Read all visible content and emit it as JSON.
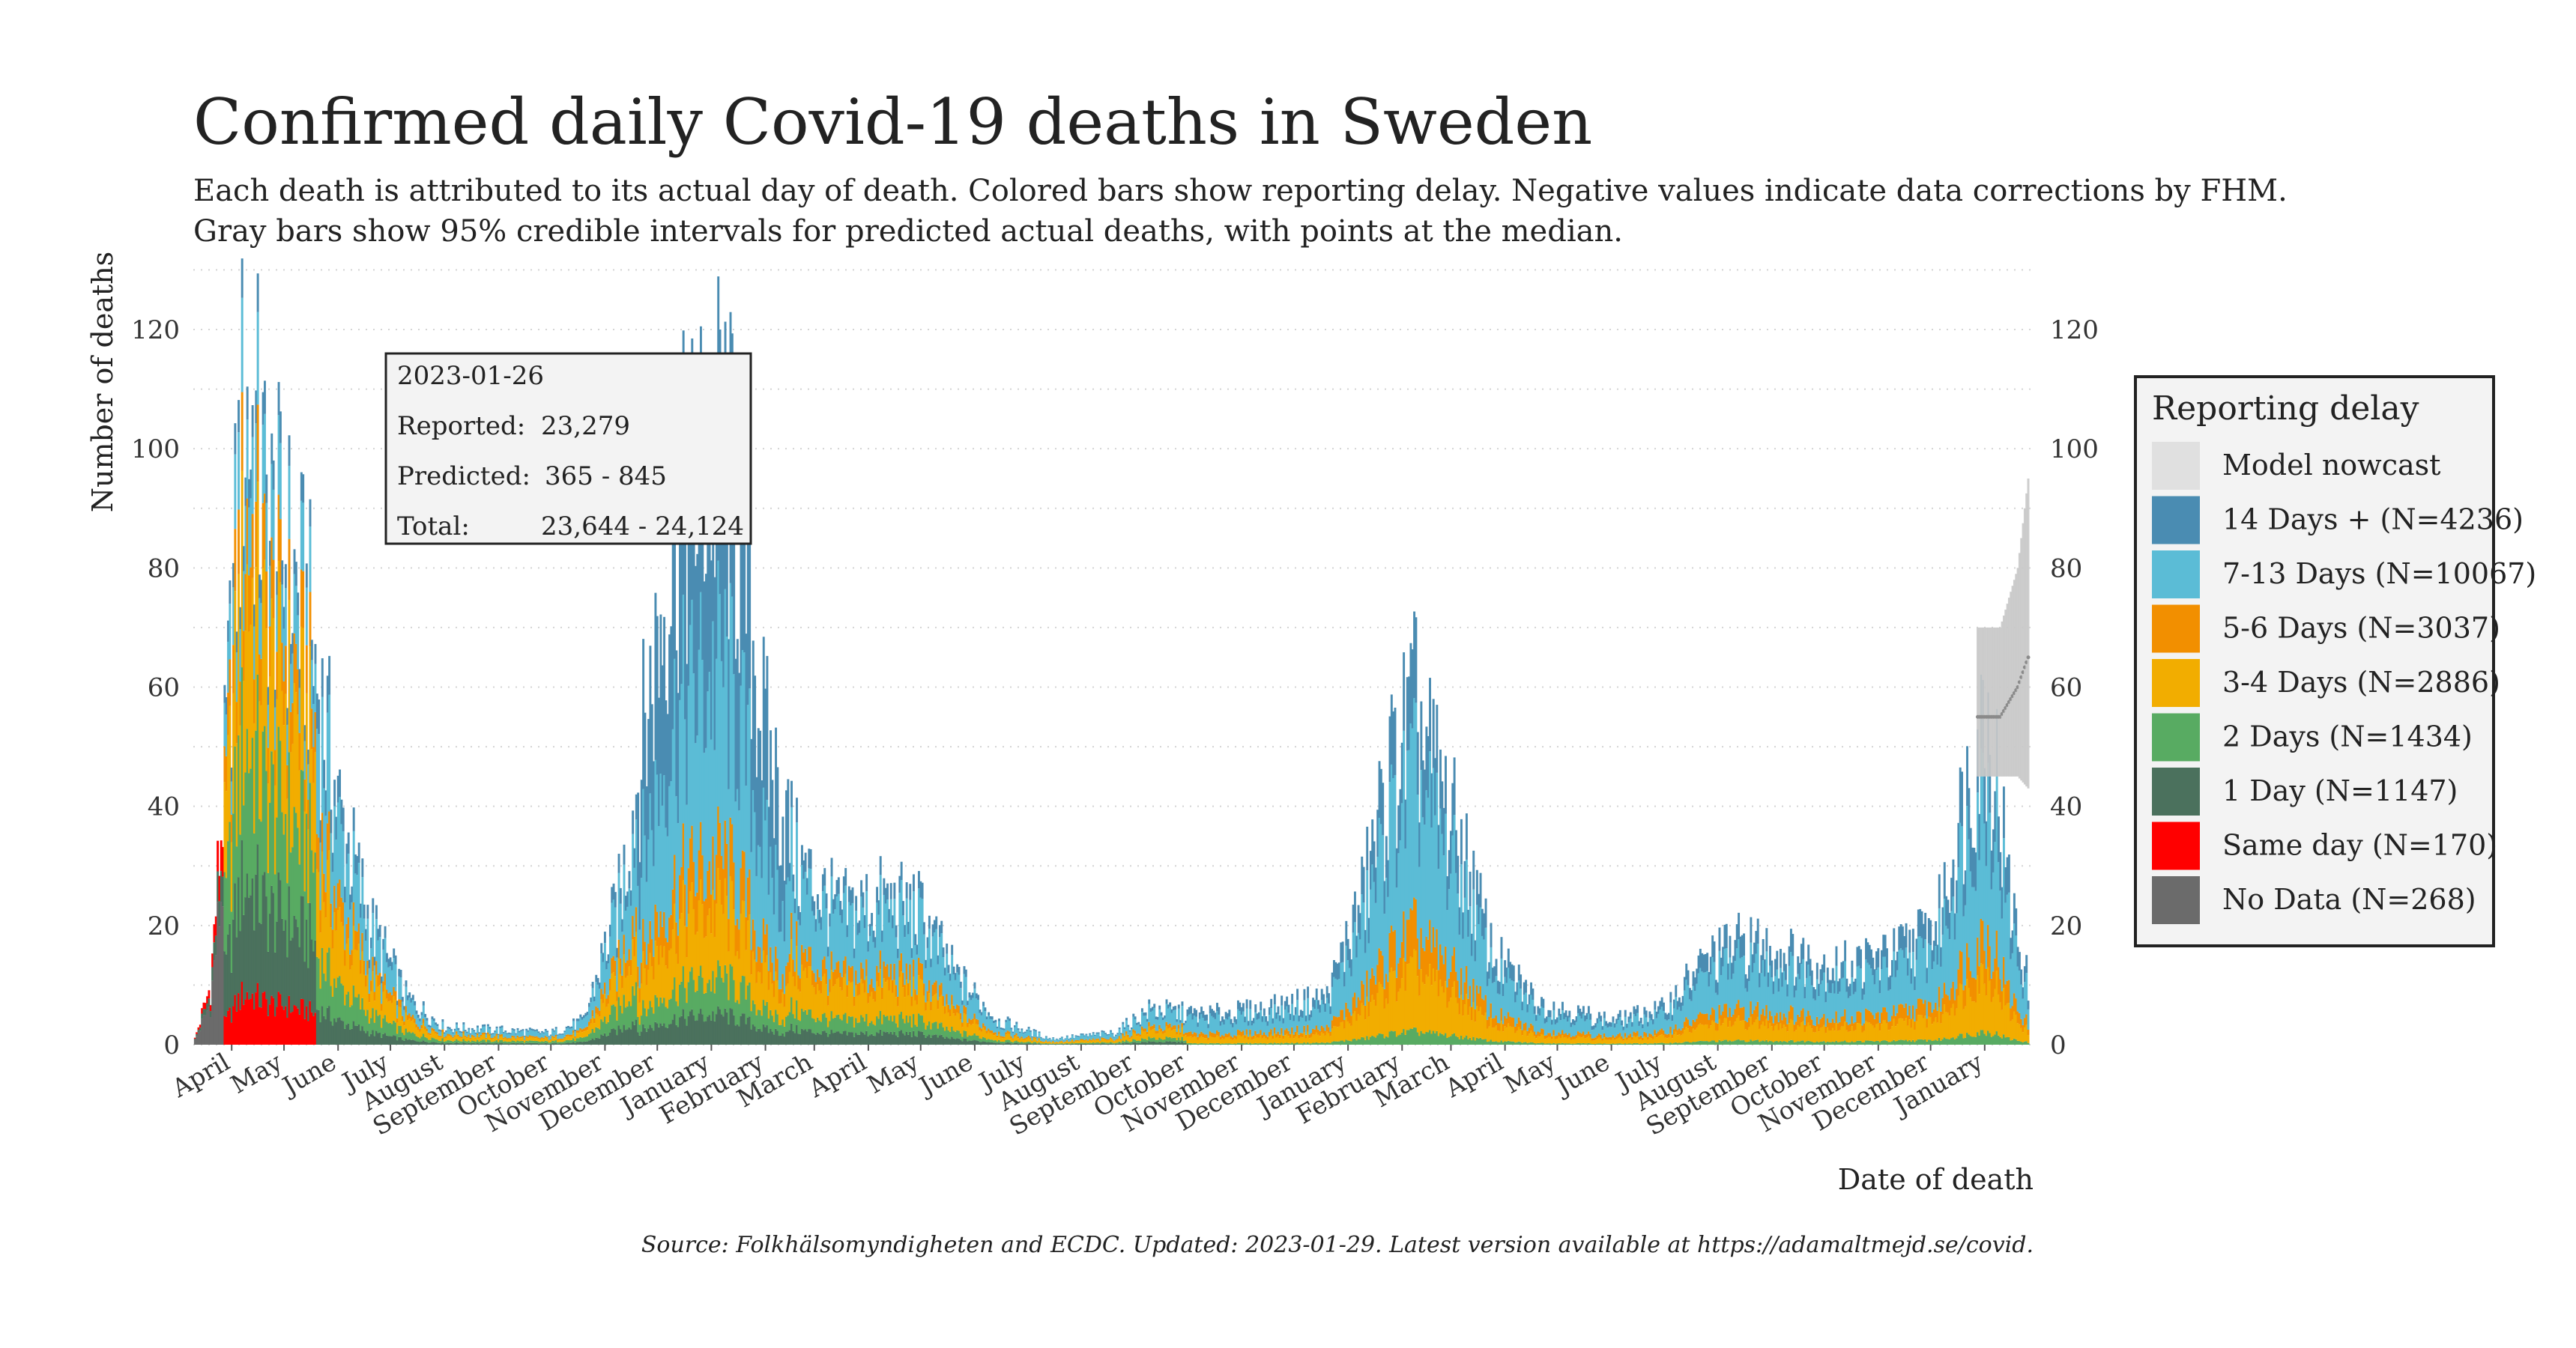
{
  "chart_data": {
    "type": "bar",
    "stacked": true,
    "title": "Confirmed daily Covid-19 deaths in Sweden",
    "subtitle_line1": "Each death is attributed to its actual day of death. Colored bars show reporting delay. Negative values indicate data corrections by FHM.",
    "subtitle_line2": "Gray bars show 95% credible intervals for predicted actual deaths, with points at the median.",
    "xlabel": "Date of death",
    "ylabel": "Number of deaths",
    "caption": "Source: Folkhälsomyndigheten and ECDC. Updated: 2023-01-29. Latest version available at https://adamaltmejd.se/covid.",
    "x_range": [
      "2020-03-10",
      "2023-01-29"
    ],
    "y_range": [
      0,
      120
    ],
    "y_ticks": [
      0,
      20,
      40,
      60,
      80,
      100,
      120
    ],
    "y_tick_labels": [
      "0",
      "20",
      "40",
      "60",
      "80",
      "100",
      "120"
    ],
    "grid": "horizontal dotted",
    "legend_position": "right",
    "month_ticks": [
      {
        "date": "2020-04-01",
        "label": "April"
      },
      {
        "date": "2020-05-01",
        "label": "May"
      },
      {
        "date": "2020-06-01",
        "label": "June"
      },
      {
        "date": "2020-07-01",
        "label": "July"
      },
      {
        "date": "2020-08-01",
        "label": "August"
      },
      {
        "date": "2020-09-01",
        "label": "September"
      },
      {
        "date": "2020-10-01",
        "label": "October"
      },
      {
        "date": "2020-11-01",
        "label": "November"
      },
      {
        "date": "2020-12-01",
        "label": "December"
      },
      {
        "date": "2021-01-01",
        "label": "January"
      },
      {
        "date": "2021-02-01",
        "label": "February"
      },
      {
        "date": "2021-03-01",
        "label": "March"
      },
      {
        "date": "2021-04-01",
        "label": "April"
      },
      {
        "date": "2021-05-01",
        "label": "May"
      },
      {
        "date": "2021-06-01",
        "label": "June"
      },
      {
        "date": "2021-07-01",
        "label": "July"
      },
      {
        "date": "2021-08-01",
        "label": "August"
      },
      {
        "date": "2021-09-01",
        "label": "September"
      },
      {
        "date": "2021-10-01",
        "label": "October"
      },
      {
        "date": "2021-11-01",
        "label": "November"
      },
      {
        "date": "2021-12-01",
        "label": "December"
      },
      {
        "date": "2022-01-01",
        "label": "January"
      },
      {
        "date": "2022-02-01",
        "label": "February"
      },
      {
        "date": "2022-03-01",
        "label": "March"
      },
      {
        "date": "2022-04-01",
        "label": "April"
      },
      {
        "date": "2022-05-01",
        "label": "May"
      },
      {
        "date": "2022-06-01",
        "label": "June"
      },
      {
        "date": "2022-07-01",
        "label": "July"
      },
      {
        "date": "2022-08-01",
        "label": "August"
      },
      {
        "date": "2022-09-01",
        "label": "September"
      },
      {
        "date": "2022-10-01",
        "label": "October"
      },
      {
        "date": "2022-11-01",
        "label": "November"
      },
      {
        "date": "2022-12-01",
        "label": "December"
      },
      {
        "date": "2023-01-01",
        "label": "January"
      }
    ],
    "series": [
      {
        "name": "Model nowcast",
        "color": "#e0e0e0",
        "legend_label": "Model nowcast"
      },
      {
        "name": "14 Days +",
        "color": "#4a8cb2",
        "legend_label": "14 Days + (N=4236)"
      },
      {
        "name": "7-13 Days",
        "color": "#5bbcd6",
        "legend_label": "7-13 Days (N=10067)"
      },
      {
        "name": "5-6 Days",
        "color": "#f28f00",
        "legend_label": "5-6 Days (N=3037)"
      },
      {
        "name": "3-4 Days",
        "color": "#f2ad00",
        "legend_label": "3-4 Days (N=2886)"
      },
      {
        "name": "2 Days",
        "color": "#58ab62",
        "legend_label": "2 Days (N=1434)"
      },
      {
        "name": "1 Day",
        "color": "#4b715d",
        "legend_label": "1 Day (N=1147)"
      },
      {
        "name": "Same day",
        "color": "#ff0000",
        "legend_label": "Same day (N=170)"
      },
      {
        "name": "No Data",
        "color": "#6b6b6b",
        "legend_label": "No Data (N=268)"
      }
    ],
    "daily_total_envelope": [
      {
        "date": "2020-03-10",
        "value": 0
      },
      {
        "date": "2020-03-20",
        "value": 10
      },
      {
        "date": "2020-03-28",
        "value": 45
      },
      {
        "date": "2020-04-03",
        "value": 80
      },
      {
        "date": "2020-04-08",
        "value": 108
      },
      {
        "date": "2020-04-15",
        "value": 100
      },
      {
        "date": "2020-04-22",
        "value": 85
      },
      {
        "date": "2020-05-01",
        "value": 82
      },
      {
        "date": "2020-05-15",
        "value": 70
      },
      {
        "date": "2020-06-01",
        "value": 40
      },
      {
        "date": "2020-06-20",
        "value": 20
      },
      {
        "date": "2020-07-10",
        "value": 8
      },
      {
        "date": "2020-08-01",
        "value": 3
      },
      {
        "date": "2020-10-01",
        "value": 2
      },
      {
        "date": "2020-10-20",
        "value": 4
      },
      {
        "date": "2020-11-10",
        "value": 25
      },
      {
        "date": "2020-11-25",
        "value": 55
      },
      {
        "date": "2020-12-10",
        "value": 85
      },
      {
        "date": "2020-12-25",
        "value": 95
      },
      {
        "date": "2021-01-08",
        "value": 100
      },
      {
        "date": "2021-01-20",
        "value": 80
      },
      {
        "date": "2021-02-01",
        "value": 50
      },
      {
        "date": "2021-02-20",
        "value": 30
      },
      {
        "date": "2021-03-15",
        "value": 22
      },
      {
        "date": "2021-04-10",
        "value": 24
      },
      {
        "date": "2021-05-01",
        "value": 22
      },
      {
        "date": "2021-05-20",
        "value": 12
      },
      {
        "date": "2021-06-15",
        "value": 4
      },
      {
        "date": "2021-07-15",
        "value": 1
      },
      {
        "date": "2021-08-20",
        "value": 2
      },
      {
        "date": "2021-09-10",
        "value": 6
      },
      {
        "date": "2021-10-10",
        "value": 5
      },
      {
        "date": "2021-11-15",
        "value": 6
      },
      {
        "date": "2021-12-20",
        "value": 8
      },
      {
        "date": "2022-01-10",
        "value": 25
      },
      {
        "date": "2022-01-25",
        "value": 45
      },
      {
        "date": "2022-02-08",
        "value": 55
      },
      {
        "date": "2022-02-20",
        "value": 45
      },
      {
        "date": "2022-03-10",
        "value": 30
      },
      {
        "date": "2022-03-25",
        "value": 15
      },
      {
        "date": "2022-04-20",
        "value": 7
      },
      {
        "date": "2022-06-01",
        "value": 4
      },
      {
        "date": "2022-07-01",
        "value": 6
      },
      {
        "date": "2022-07-25",
        "value": 14
      },
      {
        "date": "2022-08-15",
        "value": 17
      },
      {
        "date": "2022-09-10",
        "value": 15
      },
      {
        "date": "2022-10-10",
        "value": 13
      },
      {
        "date": "2022-11-10",
        "value": 15
      },
      {
        "date": "2022-12-05",
        "value": 20
      },
      {
        "date": "2022-12-20",
        "value": 40
      },
      {
        "date": "2023-01-01",
        "value": 55
      },
      {
        "date": "2023-01-08",
        "value": 45
      },
      {
        "date": "2023-01-15",
        "value": 25
      },
      {
        "date": "2023-01-26",
        "value": 10
      }
    ],
    "nowcast": [
      {
        "date": "2023-01-10",
        "low": 45,
        "high": 70,
        "median": 55
      },
      {
        "date": "2023-01-20",
        "low": 45,
        "high": 80,
        "median": 60
      },
      {
        "date": "2023-01-26",
        "low": 43,
        "high": 95,
        "median": 65
      }
    ],
    "tooltip": {
      "date": "2023-01-26",
      "reported_label": "Reported:",
      "reported_value": "23,279",
      "predicted_label": "Predicted:",
      "predicted_value": "365 - 845",
      "total_label": "Total:",
      "total_value": "23,644 - 24,124"
    },
    "legend_title": "Reporting delay"
  }
}
